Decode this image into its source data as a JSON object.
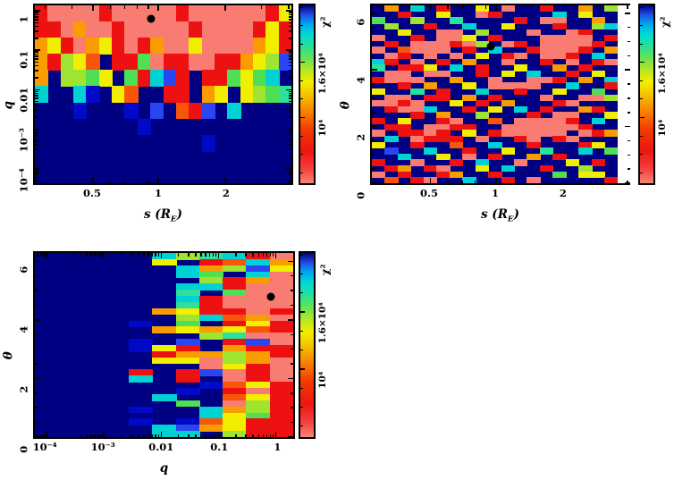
{
  "figure": {
    "description": "Three chi-squared heatmap panels over binary-lens parameter grids with rainbow colorbars and black best-fit markers",
    "background": "#ffffff",
    "text_color": "#000000"
  },
  "palette": {
    "N": "#000082",
    "B": "#0009c8",
    "U": "#2a46f2",
    "C": "#00d2d4",
    "T": "#2de19c",
    "G": "#4fdf52",
    "L": "#a0e432",
    "Y": "#f2ee00",
    "O": "#f99c00",
    "D": "#f75608",
    "R": "#ee1111",
    "S": "#f97c72",
    "W": "#ffffff"
  },
  "palette_chi2_key": {
    "S": "≈4×10³ (lowest χ², best)",
    "R": "≈6×10³",
    "D": "≈9×10³",
    "O": "≈1.1×10⁴",
    "Y": "≈1.3×10⁴",
    "L": "≈1.5×10⁴",
    "G": "≈1.7×10⁴",
    "T": "≈1.8×10⁴",
    "C": "≈1.9×10⁴",
    "U": "≈2.1×10⁴",
    "B": "≈2.15×10⁴",
    "N": "≥2.2×10⁴ (highest)",
    "W": "no data"
  },
  "colorbar": {
    "title": "χ²",
    "range_approx": [
      3000,
      22000
    ],
    "ticks": [
      {
        "label": "10⁴",
        "pos": 0.37
      },
      {
        "label": "1.6×10⁴",
        "pos": 0.68
      }
    ],
    "minor_ticks": [
      0.06,
      0.163,
      0.266,
      0.473,
      0.576,
      0.783,
      0.886,
      0.989
    ],
    "gradient": [
      [
        0.0,
        "#fb8478"
      ],
      [
        0.08,
        "#f5403c"
      ],
      [
        0.18,
        "#ee1612"
      ],
      [
        0.3,
        "#f23800"
      ],
      [
        0.4,
        "#f87e00"
      ],
      [
        0.5,
        "#f4c400"
      ],
      [
        0.57,
        "#f2ee00"
      ],
      [
        0.64,
        "#b4e622"
      ],
      [
        0.71,
        "#5ee25a"
      ],
      [
        0.78,
        "#20dfa4"
      ],
      [
        0.84,
        "#00d8d8"
      ],
      [
        0.9,
        "#00a0f0"
      ],
      [
        0.95,
        "#2348e0"
      ],
      [
        1.0,
        "#000082"
      ]
    ]
  },
  "chart_data": [
    {
      "id": "q-vs-s",
      "type": "heatmap",
      "value_label": "χ²",
      "xlabel": {
        "pre": "s (R",
        "sub": "E",
        "post": ")"
      },
      "ylabel": "q",
      "x_range": [
        0.28,
        4.1
      ],
      "y_range": [
        4.3e-05,
        1.36
      ],
      "x_axis": {
        "scale": "log",
        "ticks": [
          {
            "label": "0.5",
            "f": 0.227
          },
          {
            "label": "1",
            "f": 0.481
          },
          {
            "label": "2",
            "f": 0.742
          }
        ],
        "minors": [
          0.04,
          0.145,
          0.294,
          0.35,
          0.399,
          0.442,
          0.884,
          0.989
        ]
      },
      "y_axis": {
        "scale": "log",
        "ticks": [
          {
            "label": "1",
            "f": 0.03
          },
          {
            "label": "0.1",
            "f": 0.252
          },
          {
            "label": "0.01",
            "f": 0.474
          },
          {
            "label": "10⁻³",
            "f": 0.696
          },
          {
            "label": "10⁻⁴",
            "f": 0.918
          }
        ],
        "log_minor": {
          "refs": [
            0.252,
            0.474,
            0.696,
            0.918,
            1.14
          ],
          "w": 0.222,
          "dir": -1
        }
      },
      "marker": {
        "x": 0.95,
        "y": 0.7,
        "fx": 0.454,
        "fy": 0.074
      },
      "grid_encoding": "rows top to bottom, one char per column, colors per palette",
      "grid": [
        "RSSSSRSSSSSRSSSSSSRY",
        "RRSOSSRSSSSSRSSSSRYR",
        "OYRSOYRSROSSYSSSSOYR",
        "ORLYDNRRGSRRSSRROYLU",
        "ONLLGYNGRCURNRRGYGCN",
        "CNNCBNYDNNRRNOYNYLGT",
        "NNNBNNNBNUNDRUNCNNNN",
        "NNNNNNNNBNNNNNNNNNNN",
        "NNNNNNNNNNNNNBNNNNNN",
        "NNNNNNNNNNNNNNNNNNNN",
        "NNNNNNNNNNNNNNNNNNNN"
      ]
    },
    {
      "id": "theta-vs-s",
      "type": "heatmap",
      "value_label": "χ²",
      "xlabel": {
        "pre": "s (R",
        "sub": "E",
        "post": ")"
      },
      "ylabel": "θ",
      "x_range": [
        0.28,
        4.1
      ],
      "y_range": [
        0,
        6.28
      ],
      "x_axis": {
        "scale": "log",
        "ticks": [
          {
            "label": "0.5",
            "f": 0.227
          },
          {
            "label": "1",
            "f": 0.481
          },
          {
            "label": "2",
            "f": 0.742
          }
        ],
        "minors": [
          0.04,
          0.145,
          0.294,
          0.35,
          0.399,
          0.442,
          0.884,
          0.989
        ]
      },
      "y_axis": {
        "scale": "linear",
        "ticks": [
          {
            "label": "6",
            "f": 0.045
          },
          {
            "label": "4",
            "f": 0.363
          },
          {
            "label": "2",
            "f": 0.682
          },
          {
            "label": "0",
            "f": 1.0
          }
        ],
        "minors": [
          0.124,
          0.204,
          0.284,
          0.443,
          0.522,
          0.602,
          0.761,
          0.841,
          0.92
        ]
      },
      "marker": {
        "x": 0.95,
        "y": 4.8,
        "fx": 0.459,
        "fy": 0.232
      },
      "grid_encoding": "rows top to bottom (θ=2π→0); W = white missing-data column",
      "grid": [
        "NONCNRNNYNSNNRNNONLW",
        "NNRNNYNNSRNNNNCNYNNW",
        "GNNLNNTNNNNRNSSNNONW",
        "NLNNRNNCNNYNNNRNNLCW",
        "NNYNNSSNLNNNSNNSRNNW",
        "SNNRNSSYNRNNNSSSSNRW",
        "NRNSSSRSLNSRNSSSSRNW",
        "SNDSSSNRNCNNRSSSRNOW",
        "NSRNSNSNYNRSNSSRNCNW",
        "CRNSNRNONNSNNRNSNRSW",
        "TNRRYNCNRNNYNNONRNNW",
        "NSSNSSNNRNYNCNNRNYNW",
        "RSSSNNONNSNNSSRNONCW",
        "NNRNONNYNSSSSNNCNNRW",
        "YNNTNRNNCNNRNNYNNGNW",
        "NSSNRRNONRNNNSNNSSLW",
        "SSRSNNYNRNONNNRSNNNW",
        "NRSSCNNRNYNCNRNNORNW",
        "NNNRNONNLNNNRNSSNNYW",
        "RNYNNRSNNDNSSSSRNCNW",
        "NRRNSSRRNNSSSSSSRNNW",
        "SNRRSRNYNRSSSSSNSROW",
        "NCNSRRRNSNNRSNRSNNNW",
        "YNNRNNDNNCNNRNNNRYNW",
        "NUNNCNNRNNYNNTNNCNGW",
        "NNCNNYNSNRNNONRNNNNW",
        "RNNSNNRNCNNSNNNYNRNW",
        "NRONRSNNYNCNNRNNLNNW",
        "SNRNNRONNRNNNNGNYYNW",
        "NDNRSNNCNNRNSNNNNNRW"
      ]
    },
    {
      "id": "theta-vs-q",
      "type": "heatmap",
      "value_label": "χ²",
      "xlabel": {
        "pre": "q"
      },
      "ylabel": "θ",
      "x_range": [
        6.3e-05,
        2.0
      ],
      "y_range": [
        0,
        6.28
      ],
      "x_axis": {
        "scale": "log",
        "ticks": [
          {
            "label": "10⁻⁴",
            "f": 0.045
          },
          {
            "label": "10⁻³",
            "f": 0.267
          },
          {
            "label": "0.01",
            "f": 0.489
          },
          {
            "label": "0.1",
            "f": 0.711
          },
          {
            "label": "1",
            "f": 0.933
          }
        ],
        "log_minor": {
          "refs": [
            -0.177,
            0.045,
            0.267,
            0.489,
            0.711,
            0.933
          ],
          "w": 0.222,
          "dir": 1
        }
      },
      "y_axis": {
        "scale": "linear",
        "ticks": [
          {
            "label": "6",
            "f": 0.045
          },
          {
            "label": "4",
            "f": 0.363
          },
          {
            "label": "2",
            "f": 0.682
          },
          {
            "label": "0",
            "f": 1.0
          }
        ],
        "minors": [
          0.124,
          0.204,
          0.284,
          0.443,
          0.522,
          0.602,
          0.761,
          0.841,
          0.92
        ]
      },
      "marker": {
        "x": 0.65,
        "y": 4.8,
        "fx": 0.915,
        "fy": 0.238
      },
      "grid_encoding": "rows top to bottom (θ=2π→0), 11 log-q columns left to right",
      "grid": [
        "NNNNNCLTCRS",
        "NNNNNYNRDCO",
        "NNNNNNCOLUY",
        "NNNNNNCGNCS",
        "NNNNNNNLROS",
        "NNNNNNCCRSS",
        "NNNNNNTNGSS",
        "NNNNNNCRSSS",
        "NNNNNNTRSSS",
        "NNNNNOYRRSR",
        "NNNNNNLCDOS",
        "NNNNBNGNRYR",
        "NNNNNOYOYDR",
        "NNNNNNNLTSS",
        "NNNNBNUNRUS",
        "NNNNBYRNORR",
        "NNNNNROOLOR",
        "NNNNNYYSLOS",
        "NNNNNNNSYRS",
        "NNNNRNRUSRS",
        "NNNNCNRNSRS",
        "NNNNNNNBDYR",
        "NNNNNNBNRSR",
        "NNNNNCNNDYR",
        "NNNNNNGNSLR",
        "NNNNBNNCOLR",
        "NNNNNNNCYGR",
        "NNNNBNBDYRR",
        "NNNNNCUOYRR",
        "NNNNNCCNLRR"
      ]
    }
  ]
}
